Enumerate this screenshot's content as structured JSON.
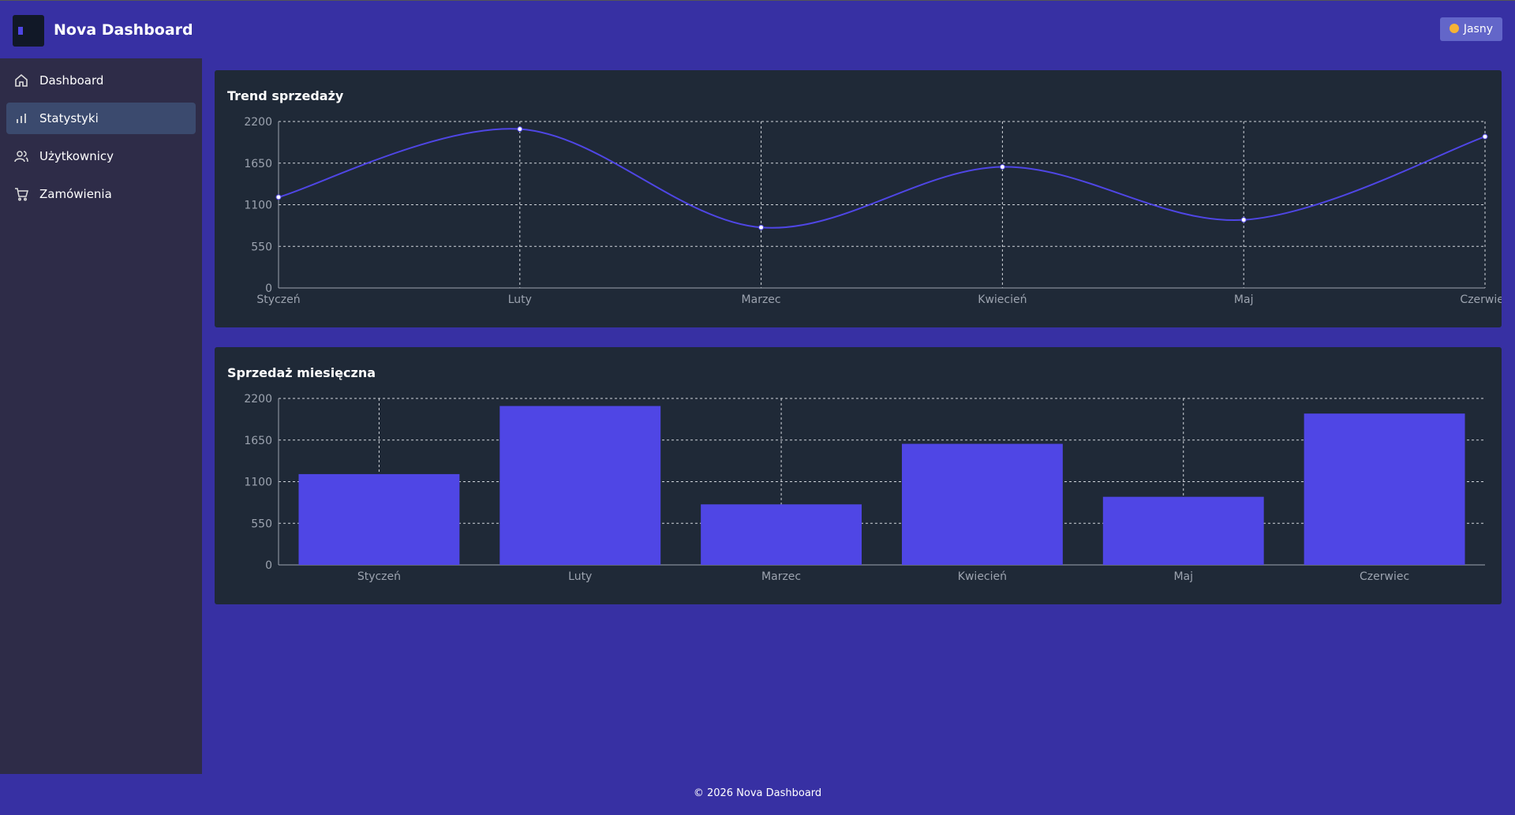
{
  "header": {
    "title": "Nova Dashboard",
    "theme_button": "Jasny"
  },
  "sidebar": {
    "items": [
      "Dashboard",
      "Statystyki",
      "Użytkownicy",
      "Zamówienia"
    ],
    "active": "Statystyki"
  },
  "chart_data": [
    {
      "type": "line",
      "title": "Trend sprzedaży",
      "categories": [
        "Styczeń",
        "Luty",
        "Marzec",
        "Kwiecień",
        "Maj",
        "Czerwiec"
      ],
      "series": [
        {
          "color": "#4f46e5",
          "values": [
            1200,
            2100,
            800,
            1600,
            900,
            2000
          ]
        }
      ],
      "ylim": [
        0,
        2200
      ],
      "yticks": [
        0,
        550,
        1100,
        1650,
        2200
      ],
      "grid": true
    },
    {
      "type": "bar",
      "title": "Sprzedaż miesięczna",
      "categories": [
        "Styczeń",
        "Luty",
        "Marzec",
        "Kwiecień",
        "Maj",
        "Czerwiec"
      ],
      "series": [
        {
          "color": "#4f46e5",
          "values": [
            1200,
            2100,
            800,
            1600,
            900,
            2000
          ]
        }
      ],
      "ylim": [
        0,
        2200
      ],
      "yticks": [
        0,
        550,
        1100,
        1650,
        2200
      ],
      "grid": true
    }
  ],
  "footer": "© 2026 Nova Dashboard"
}
